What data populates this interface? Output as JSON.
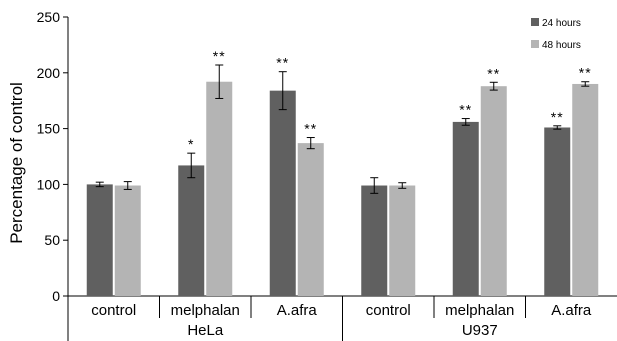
{
  "chart_data": {
    "type": "bar",
    "title": "",
    "xlabel": "",
    "ylabel": "Percentage of control",
    "ylim": [
      0,
      250
    ],
    "yticks": [
      0,
      50,
      100,
      150,
      200,
      250
    ],
    "grid": false,
    "legend_position": "top-right",
    "series_colors": [
      "#606060",
      "#b4b4b4"
    ],
    "groups": [
      {
        "label": "HeLa",
        "categories": [
          "control",
          "melphalan",
          "A.afra"
        ]
      },
      {
        "label": "U937",
        "categories": [
          "control",
          "melphalan",
          "A.afra"
        ]
      }
    ],
    "categories": [
      "control",
      "melphalan",
      "A.afra",
      "control",
      "melphalan",
      "A.afra"
    ],
    "series": [
      {
        "name": "24 hours",
        "values": [
          100,
          117,
          184,
          99,
          156,
          151
        ],
        "errors": [
          2,
          11,
          17,
          7,
          3,
          1.5
        ],
        "significance": [
          "",
          "*",
          "**",
          "",
          "**",
          "**"
        ]
      },
      {
        "name": "48 hours",
        "values": [
          99,
          192,
          137,
          99,
          188,
          190
        ],
        "errors": [
          3.5,
          15,
          5,
          2.5,
          3.5,
          2
        ],
        "significance": [
          "",
          "**",
          "**",
          "",
          "**",
          "**"
        ]
      }
    ]
  }
}
